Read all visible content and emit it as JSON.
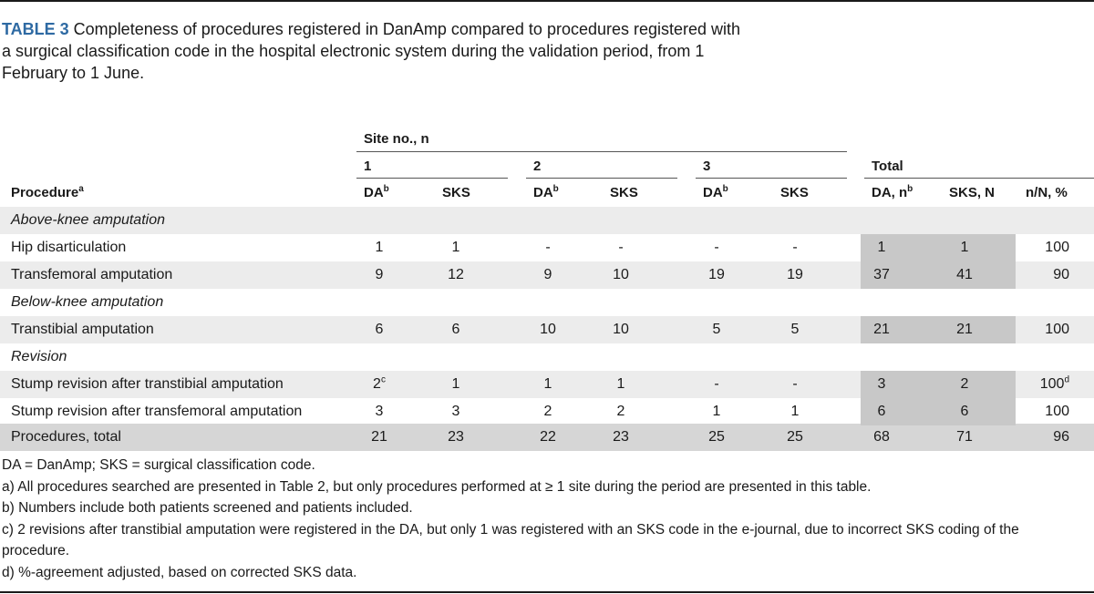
{
  "caption": {
    "label": "TABLE 3",
    "text": " Completeness of procedures registered in DanAmp compared to procedures registered with a surgical classification code in the hospital electronic system during the validation period, from 1 February to 1 June."
  },
  "header": {
    "site_group": "Site no., n",
    "site1": "1",
    "site2": "2",
    "site3": "3",
    "total": "Total",
    "procedure": "Procedure",
    "procedure_sup": "a",
    "da": "DA",
    "da_sup": "b",
    "sks": "SKS",
    "total_da": "DA, n",
    "total_da_sup": "b",
    "total_sks": "SKS, N",
    "pct": "n/N, %"
  },
  "rows": [
    {
      "section": "Above-knee amputation"
    },
    {
      "name": "Hip disarticulation",
      "v": [
        "1",
        "1",
        "-",
        "-",
        "-",
        "-",
        "1",
        "1",
        "100"
      ],
      "sup": [
        "",
        "",
        "",
        "",
        "",
        "",
        "",
        "",
        ""
      ]
    },
    {
      "name": "Transfemoral amputation",
      "v": [
        "9",
        "12",
        "9",
        "10",
        "19",
        "19",
        "37",
        "41",
        "90"
      ],
      "sup": [
        "",
        "",
        "",
        "",
        "",
        "",
        "",
        "",
        ""
      ]
    },
    {
      "section": "Below-knee amputation"
    },
    {
      "name": "Transtibial amputation",
      "v": [
        "6",
        "6",
        "10",
        "10",
        "5",
        "5",
        "21",
        "21",
        "100"
      ],
      "sup": [
        "",
        "",
        "",
        "",
        "",
        "",
        "",
        "",
        ""
      ]
    },
    {
      "section": "Revision"
    },
    {
      "name": "Stump revision after transtibial amputation",
      "v": [
        "2",
        "1",
        "1",
        "1",
        "-",
        "-",
        "3",
        "2",
        "100"
      ],
      "sup": [
        "c",
        "",
        "",
        "",
        "",
        "",
        "",
        "",
        "d"
      ]
    },
    {
      "name": "Stump revision after transfemoral amputation",
      "v": [
        "3",
        "3",
        "2",
        "2",
        "1",
        "1",
        "6",
        "6",
        "100"
      ],
      "sup": [
        "",
        "",
        "",
        "",
        "",
        "",
        "",
        "",
        ""
      ]
    },
    {
      "name": "Procedures, total",
      "v": [
        "21",
        "23",
        "22",
        "23",
        "25",
        "25",
        "68",
        "71",
        "96"
      ],
      "sup": [
        "",
        "",
        "",
        "",
        "",
        "",
        "",
        "",
        ""
      ]
    }
  ],
  "notes": [
    "DA = DanAmp; SKS = surgical classification code.",
    "a) All procedures searched are presented in Table 2, but only procedures performed at ≥ 1 site during the period are presented in this table.",
    "b) Numbers include both patients screened and patients included.",
    "c) 2 revisions after transtibial amputation were registered in the DA, but only 1 was registered with an SKS code in the e-journal, due to incorrect SKS coding of the procedure.",
    "d) %-agreement adjusted, based on corrected SKS data."
  ]
}
